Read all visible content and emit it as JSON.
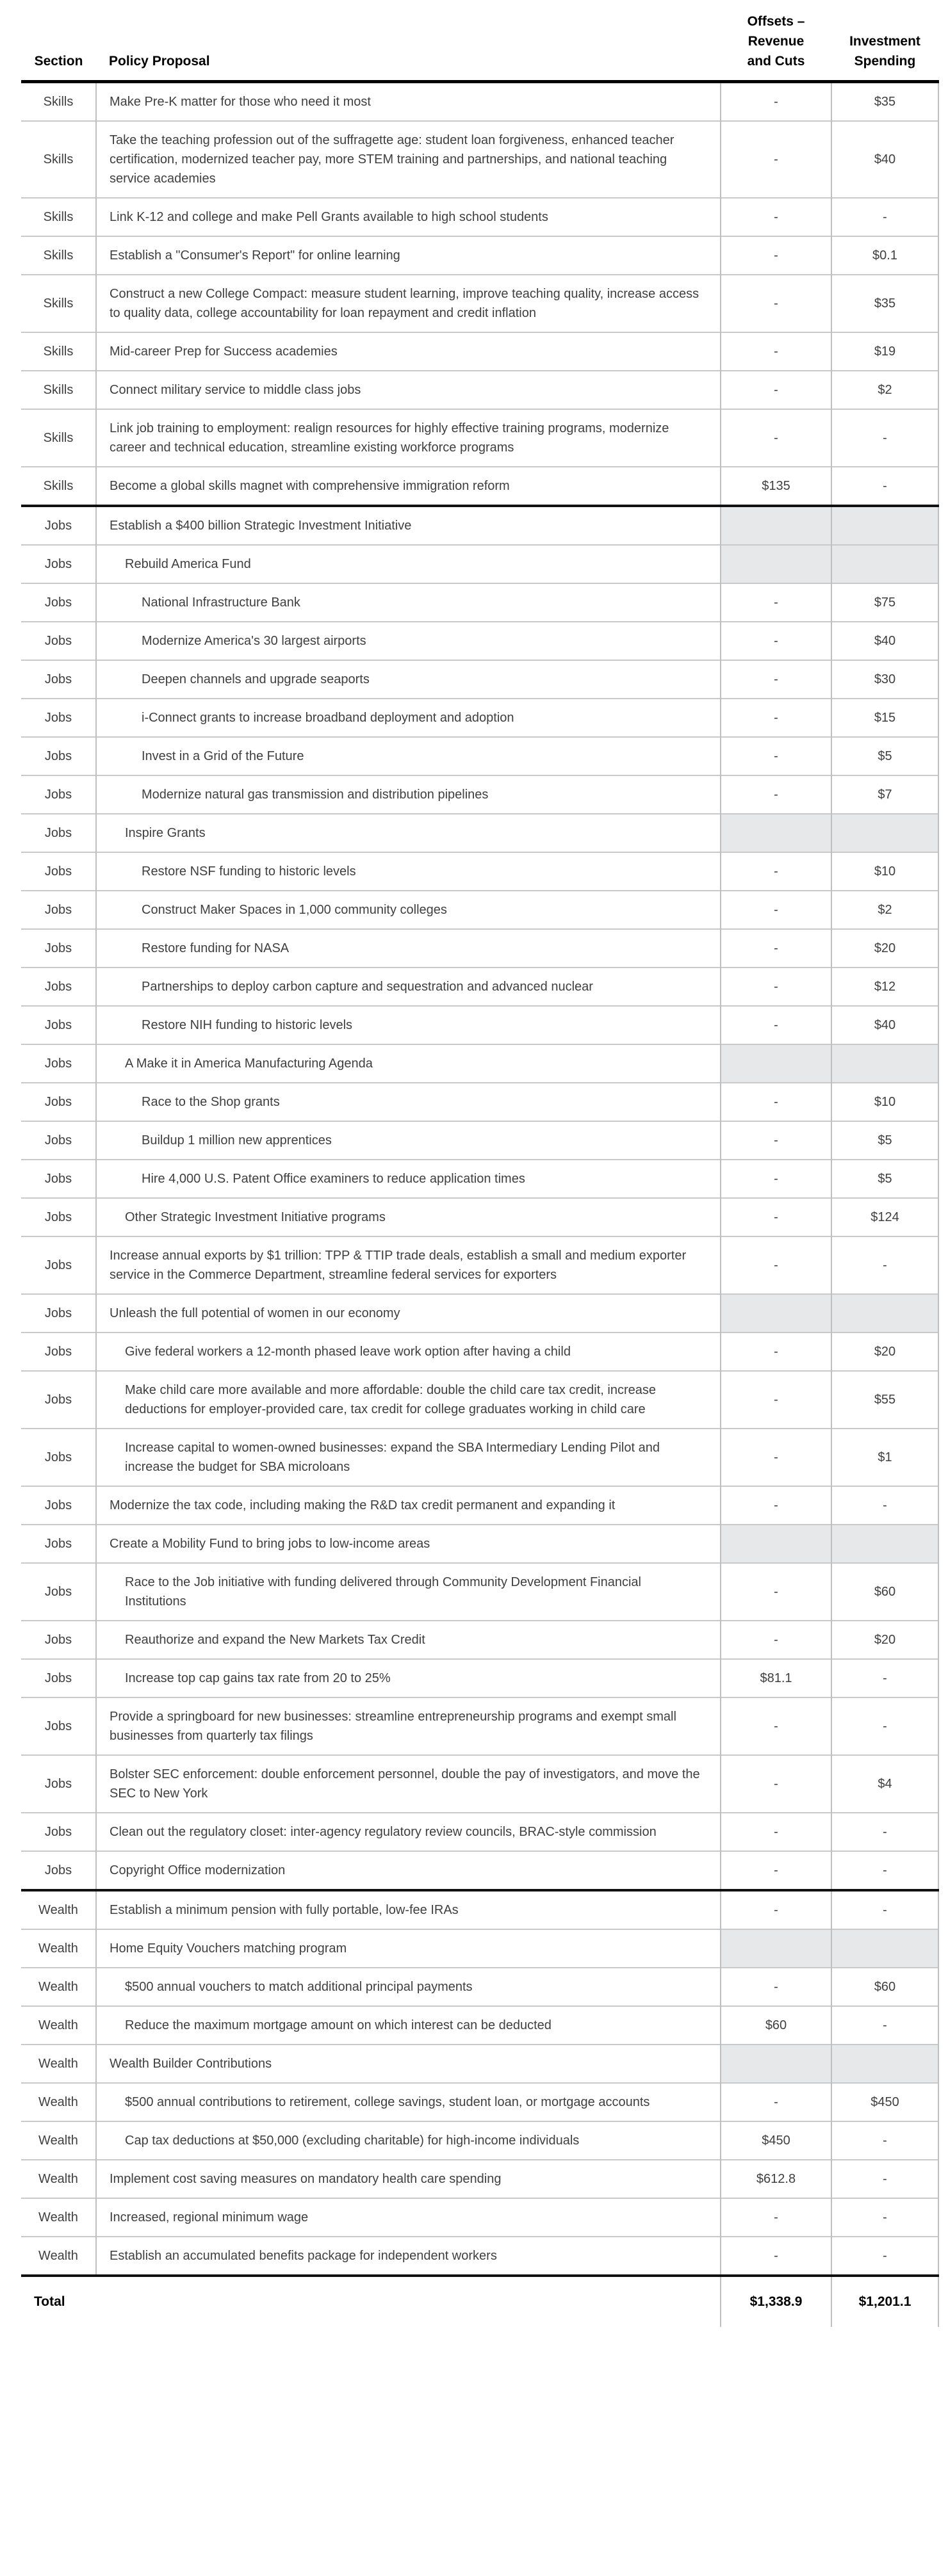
{
  "table": {
    "header": {
      "section": "Section",
      "policy": "Policy Proposal",
      "offsets_lines": [
        "Offsets –",
        "Revenue",
        "and Cuts"
      ],
      "investment_lines": [
        "Investment",
        "Spending"
      ]
    },
    "colors": {
      "shaded_cell": "#e7e8ea",
      "thin_border": "#c9c9c9",
      "thick_border": "#111111",
      "body_text": "#3f3f3f",
      "header_text": "#000000"
    },
    "rows": [
      {
        "section": "Skills",
        "policy": "Make Pre-K matter for those who need it most",
        "offsets": "-",
        "investment": "$35",
        "indent": 0,
        "shaded": false,
        "thick_top": false
      },
      {
        "section": "Skills",
        "policy": "Take the teaching profession out of the suffragette age: student loan forgiveness, enhanced teacher certification, modernized teacher pay, more STEM training and partnerships, and national teaching service academies",
        "offsets": "-",
        "investment": "$40",
        "indent": 0,
        "shaded": false,
        "thick_top": false
      },
      {
        "section": "Skills",
        "policy": "Link K-12 and college and make Pell Grants available to high school students",
        "offsets": "-",
        "investment": "-",
        "indent": 0,
        "shaded": false,
        "thick_top": false
      },
      {
        "section": "Skills",
        "policy": "Establish a \"Consumer's Report\" for online learning",
        "offsets": "-",
        "investment": "$0.1",
        "indent": 0,
        "shaded": false,
        "thick_top": false
      },
      {
        "section": "Skills",
        "policy": "Construct a new College Compact: measure student learning, improve teaching quality, increase access to quality data, college accountability for loan repayment and credit inflation",
        "offsets": "-",
        "investment": "$35",
        "indent": 0,
        "shaded": false,
        "thick_top": false
      },
      {
        "section": "Skills",
        "policy": "Mid-career Prep for Success academies",
        "offsets": "-",
        "investment": "$19",
        "indent": 0,
        "shaded": false,
        "thick_top": false
      },
      {
        "section": "Skills",
        "policy": "Connect military service to middle class jobs",
        "offsets": "-",
        "investment": "$2",
        "indent": 0,
        "shaded": false,
        "thick_top": false
      },
      {
        "section": "Skills",
        "policy": "Link job training to employment: realign resources for highly effective training programs, modernize career and technical education, streamline existing workforce programs",
        "offsets": "-",
        "investment": "-",
        "indent": 0,
        "shaded": false,
        "thick_top": false
      },
      {
        "section": "Skills",
        "policy": "Become a global skills magnet with comprehensive immigration reform",
        "offsets": "$135",
        "investment": "-",
        "indent": 0,
        "shaded": false,
        "thick_top": false
      },
      {
        "section": "Jobs",
        "policy": "Establish a $400 billion Strategic Investment Initiative",
        "offsets": "",
        "investment": "",
        "indent": 0,
        "shaded": true,
        "thick_top": true
      },
      {
        "section": "Jobs",
        "policy": "Rebuild America Fund",
        "offsets": "",
        "investment": "",
        "indent": 1,
        "shaded": true,
        "thick_top": false
      },
      {
        "section": "Jobs",
        "policy": "National Infrastructure Bank",
        "offsets": "-",
        "investment": "$75",
        "indent": 2,
        "shaded": false,
        "thick_top": false
      },
      {
        "section": "Jobs",
        "policy": "Modernize America's 30 largest airports",
        "offsets": "-",
        "investment": "$40",
        "indent": 2,
        "shaded": false,
        "thick_top": false
      },
      {
        "section": "Jobs",
        "policy": "Deepen channels and upgrade seaports",
        "offsets": "-",
        "investment": "$30",
        "indent": 2,
        "shaded": false,
        "thick_top": false
      },
      {
        "section": "Jobs",
        "policy": "i-Connect grants to increase broadband deployment and adoption",
        "offsets": "-",
        "investment": "$15",
        "indent": 2,
        "shaded": false,
        "thick_top": false
      },
      {
        "section": "Jobs",
        "policy": "Invest in a Grid of the Future",
        "offsets": "-",
        "investment": "$5",
        "indent": 2,
        "shaded": false,
        "thick_top": false
      },
      {
        "section": "Jobs",
        "policy": "Modernize natural gas transmission and distribution pipelines",
        "offsets": "-",
        "investment": "$7",
        "indent": 2,
        "shaded": false,
        "thick_top": false
      },
      {
        "section": "Jobs",
        "policy": "Inspire Grants",
        "offsets": "",
        "investment": "",
        "indent": 1,
        "shaded": true,
        "thick_top": false
      },
      {
        "section": "Jobs",
        "policy": "Restore NSF funding to historic levels",
        "offsets": "-",
        "investment": "$10",
        "indent": 2,
        "shaded": false,
        "thick_top": false
      },
      {
        "section": "Jobs",
        "policy": "Construct Maker Spaces in 1,000 community colleges",
        "offsets": "-",
        "investment": "$2",
        "indent": 2,
        "shaded": false,
        "thick_top": false
      },
      {
        "section": "Jobs",
        "policy": "Restore funding for NASA",
        "offsets": "-",
        "investment": "$20",
        "indent": 2,
        "shaded": false,
        "thick_top": false
      },
      {
        "section": "Jobs",
        "policy": "Partnerships to deploy carbon capture and sequestration and advanced nuclear",
        "offsets": "-",
        "investment": "$12",
        "indent": 2,
        "shaded": false,
        "thick_top": false
      },
      {
        "section": "Jobs",
        "policy": "Restore NIH funding to historic levels",
        "offsets": "-",
        "investment": "$40",
        "indent": 2,
        "shaded": false,
        "thick_top": false
      },
      {
        "section": "Jobs",
        "policy": "A Make it in America Manufacturing Agenda",
        "offsets": "",
        "investment": "",
        "indent": 1,
        "shaded": true,
        "thick_top": false
      },
      {
        "section": "Jobs",
        "policy": "Race to the Shop grants",
        "offsets": "-",
        "investment": "$10",
        "indent": 2,
        "shaded": false,
        "thick_top": false
      },
      {
        "section": "Jobs",
        "policy": "Buildup 1 million new apprentices",
        "offsets": "-",
        "investment": "$5",
        "indent": 2,
        "shaded": false,
        "thick_top": false
      },
      {
        "section": "Jobs",
        "policy": "Hire 4,000 U.S. Patent Office examiners to reduce application times",
        "offsets": "-",
        "investment": "$5",
        "indent": 2,
        "shaded": false,
        "thick_top": false
      },
      {
        "section": "Jobs",
        "policy": "Other Strategic Investment Initiative programs",
        "offsets": "-",
        "investment": "$124",
        "indent": 1,
        "shaded": false,
        "thick_top": false
      },
      {
        "section": "Jobs",
        "policy": "Increase annual exports by $1 trillion: TPP & TTIP trade deals, establish a small and medium exporter service in the Commerce Department, streamline federal services for exporters",
        "offsets": "-",
        "investment": "-",
        "indent": 0,
        "shaded": false,
        "thick_top": false
      },
      {
        "section": "Jobs",
        "policy": "Unleash the full potential of women in our economy",
        "offsets": "",
        "investment": "",
        "indent": 0,
        "shaded": true,
        "thick_top": false
      },
      {
        "section": "Jobs",
        "policy": "Give federal workers a 12-month phased leave work option after having a child",
        "offsets": "-",
        "investment": "$20",
        "indent": 1,
        "shaded": false,
        "thick_top": false
      },
      {
        "section": "Jobs",
        "policy": "Make child care more available and more affordable: double the child care tax credit, increase deductions for employer-provided care, tax credit for college graduates working in child care",
        "offsets": "-",
        "investment": "$55",
        "indent": 1,
        "shaded": false,
        "thick_top": false
      },
      {
        "section": "Jobs",
        "policy": "Increase capital to women-owned businesses: expand the SBA Intermediary Lending Pilot and increase the budget for SBA microloans",
        "offsets": "-",
        "investment": "$1",
        "indent": 1,
        "shaded": false,
        "thick_top": false
      },
      {
        "section": "Jobs",
        "policy": "Modernize the tax code, including making the R&D tax credit permanent and expanding it",
        "offsets": "-",
        "investment": "-",
        "indent": 0,
        "shaded": false,
        "thick_top": false
      },
      {
        "section": "Jobs",
        "policy": "Create a Mobility Fund to bring jobs to low-income areas",
        "offsets": "",
        "investment": "",
        "indent": 0,
        "shaded": true,
        "thick_top": false
      },
      {
        "section": "Jobs",
        "policy": "Race to the Job initiative with funding delivered through  Community Development Financial Institutions",
        "offsets": "-",
        "investment": "$60",
        "indent": 1,
        "shaded": false,
        "thick_top": false
      },
      {
        "section": "Jobs",
        "policy": "Reauthorize and expand the New Markets Tax Credit",
        "offsets": "-",
        "investment": "$20",
        "indent": 1,
        "shaded": false,
        "thick_top": false
      },
      {
        "section": "Jobs",
        "policy": "Increase top cap gains tax rate from 20 to 25%",
        "offsets": "$81.1",
        "investment": "-",
        "indent": 1,
        "shaded": false,
        "thick_top": false
      },
      {
        "section": "Jobs",
        "policy": "Provide a springboard for new businesses: streamline entrepreneurship programs and exempt small businesses from quarterly tax filings",
        "offsets": "-",
        "investment": "-",
        "indent": 0,
        "shaded": false,
        "thick_top": false
      },
      {
        "section": "Jobs",
        "policy": "Bolster SEC enforcement: double enforcement personnel, double the pay of investigators, and move the SEC to New York",
        "offsets": "-",
        "investment": "$4",
        "indent": 0,
        "shaded": false,
        "thick_top": false
      },
      {
        "section": "Jobs",
        "policy": "Clean out the regulatory closet: inter-agency regulatory review councils, BRAC-style commission",
        "offsets": "-",
        "investment": "-",
        "indent": 0,
        "shaded": false,
        "thick_top": false
      },
      {
        "section": "Jobs",
        "policy": "Copyright Office modernization",
        "offsets": "-",
        "investment": "-",
        "indent": 0,
        "shaded": false,
        "thick_top": false
      },
      {
        "section": "Wealth",
        "policy": "Establish a minimum pension with fully portable, low-fee IRAs",
        "offsets": "-",
        "investment": "-",
        "indent": 0,
        "shaded": false,
        "thick_top": true
      },
      {
        "section": "Wealth",
        "policy": "Home Equity Vouchers matching program",
        "offsets": "",
        "investment": "",
        "indent": 0,
        "shaded": true,
        "thick_top": false
      },
      {
        "section": "Wealth",
        "policy": "$500 annual vouchers to match additional principal payments",
        "offsets": "-",
        "investment": "$60",
        "indent": 1,
        "shaded": false,
        "thick_top": false
      },
      {
        "section": "Wealth",
        "policy": "Reduce the maximum mortgage amount on which interest can be deducted",
        "offsets": "$60",
        "investment": "-",
        "indent": 1,
        "shaded": false,
        "thick_top": false
      },
      {
        "section": "Wealth",
        "policy": "Wealth Builder Contributions",
        "offsets": "",
        "investment": "",
        "indent": 0,
        "shaded": true,
        "thick_top": false
      },
      {
        "section": "Wealth",
        "policy": "$500 annual contributions to retirement, college savings, student loan, or mortgage accounts",
        "offsets": "-",
        "investment": "$450",
        "indent": 1,
        "shaded": false,
        "thick_top": false
      },
      {
        "section": "Wealth",
        "policy": "Cap tax deductions at $50,000 (excluding charitable) for high-income individuals",
        "offsets": "$450",
        "investment": "-",
        "indent": 1,
        "shaded": false,
        "thick_top": false
      },
      {
        "section": "Wealth",
        "policy": "Implement cost saving measures on mandatory health care spending",
        "offsets": "$612.8",
        "investment": "-",
        "indent": 0,
        "shaded": false,
        "thick_top": false
      },
      {
        "section": "Wealth",
        "policy": "Increased, regional minimum wage",
        "offsets": "-",
        "investment": "-",
        "indent": 0,
        "shaded": false,
        "thick_top": false
      },
      {
        "section": "Wealth",
        "policy": "Establish an accumulated benefits package for independent workers",
        "offsets": "-",
        "investment": "-",
        "indent": 0,
        "shaded": false,
        "thick_top": false
      }
    ],
    "total": {
      "label": "Total",
      "offsets": "$1,338.9",
      "investment": "$1,201.1"
    }
  }
}
